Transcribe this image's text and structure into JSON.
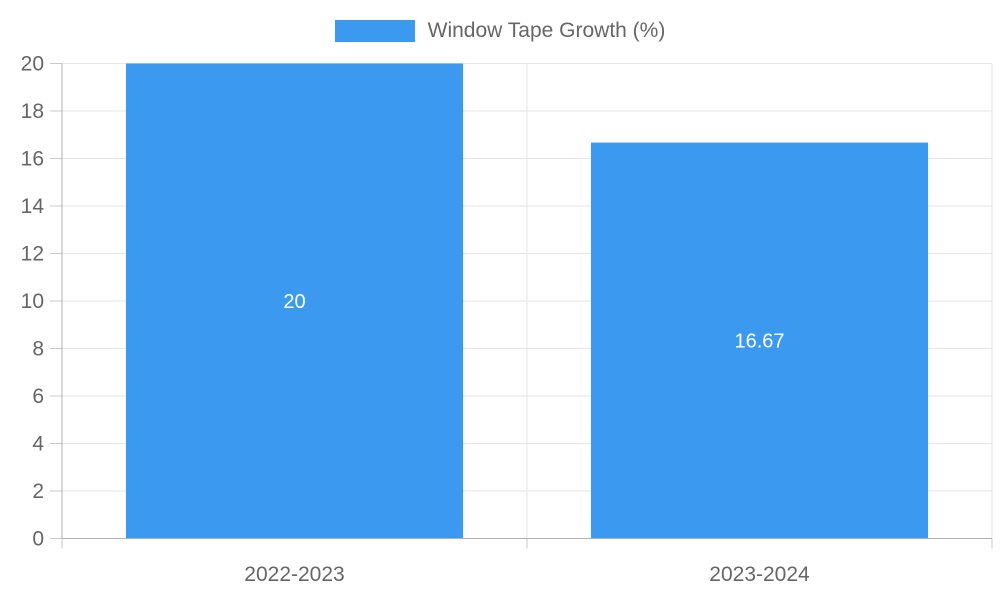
{
  "chart_data": {
    "type": "bar",
    "title": "Window Tape Growth (%)",
    "categories": [
      "2022-2023",
      "2023-2024"
    ],
    "values": [
      20,
      16.67
    ],
    "value_labels": [
      "20",
      "16.67"
    ],
    "xlabel": "",
    "ylabel": "",
    "ylim": [
      0,
      20
    ],
    "yticks": [
      0,
      2,
      4,
      6,
      8,
      10,
      12,
      14,
      16,
      18,
      20
    ],
    "grid": true,
    "legend_position": "top",
    "colors": {
      "bar": "#3b99f0",
      "value_label": "#ffffff",
      "tick_text": "#666666",
      "grid": "#e6e6e6",
      "axis": "#b0b0b0",
      "tick_mark": "#c9c9c9"
    }
  }
}
